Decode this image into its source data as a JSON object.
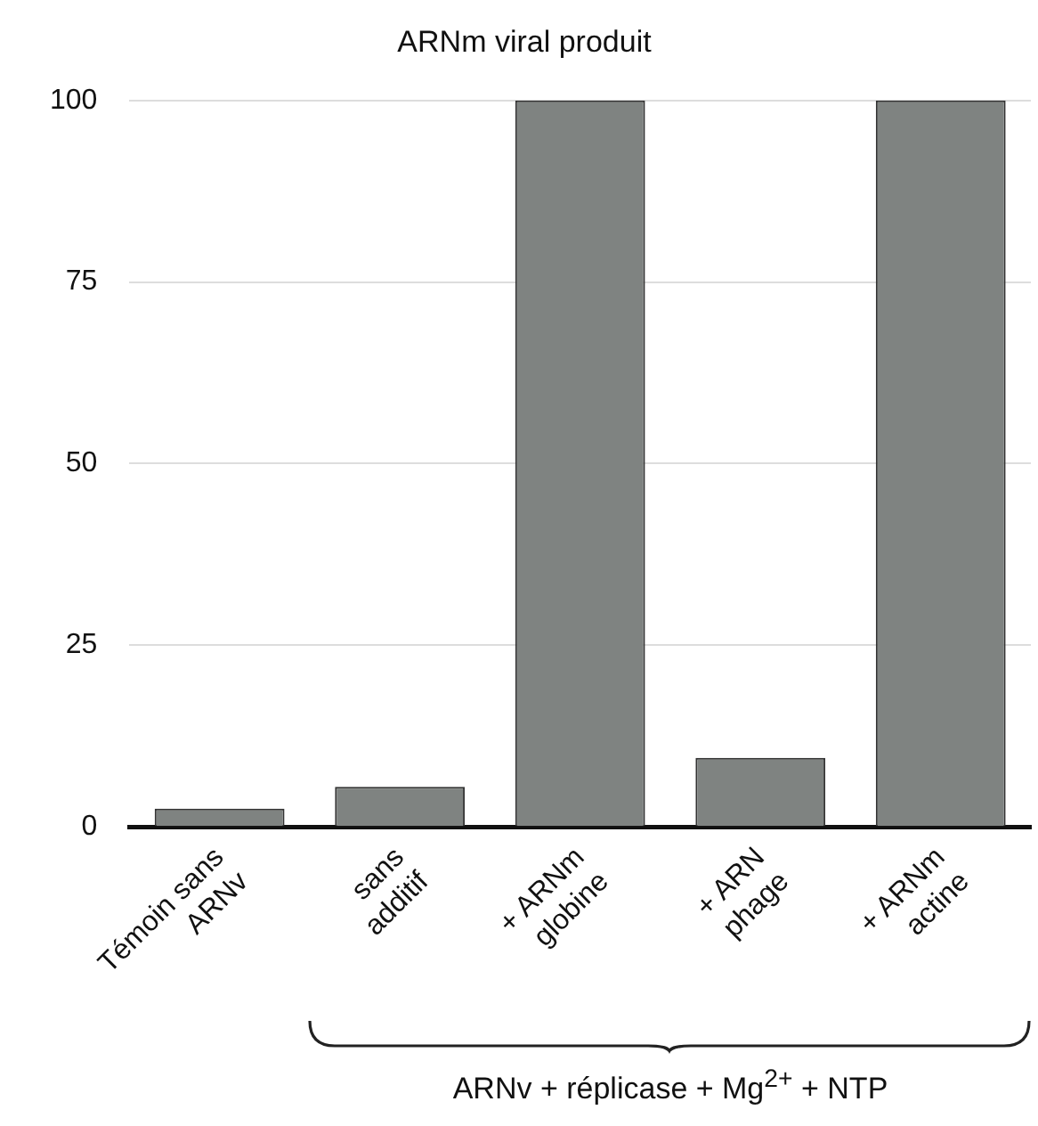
{
  "chart_data": {
    "type": "bar",
    "title": "ARNm viral produit",
    "categories": [
      "Témoin sans\nARNv",
      "sans\nadditif",
      "+ ARNm\nglobine",
      "+ ARN\nphage",
      "+ ARNm\nactine"
    ],
    "values": [
      2.5,
      5.5,
      100,
      9.5,
      100
    ],
    "color": "#7f8381",
    "ylim": [
      0,
      100
    ],
    "yticks": [
      0,
      25,
      50,
      75,
      100
    ],
    "grid": "y",
    "annotations": [
      "ARNv + réplicase + Mg$^{2+}$ + NTP"
    ]
  }
}
